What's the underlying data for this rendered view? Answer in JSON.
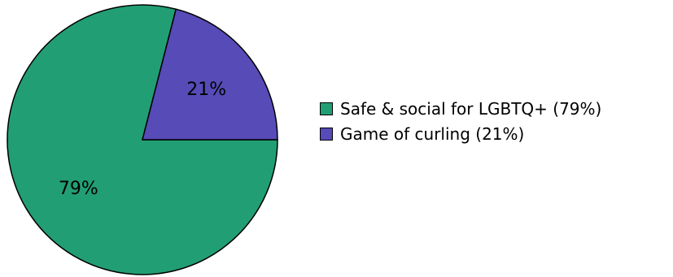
{
  "chart_data": {
    "type": "pie",
    "title": "",
    "slices": [
      {
        "label": "79%",
        "legend": "Safe & social for LGBTQ+ (79%)",
        "value": 79,
        "color": "#229e75"
      },
      {
        "label": "21%",
        "legend": "Game of curling (21%)",
        "value": 21,
        "color": "#574bb8"
      }
    ],
    "start_angle_deg": 0,
    "direction": "clockwise",
    "legend_position": "right"
  }
}
